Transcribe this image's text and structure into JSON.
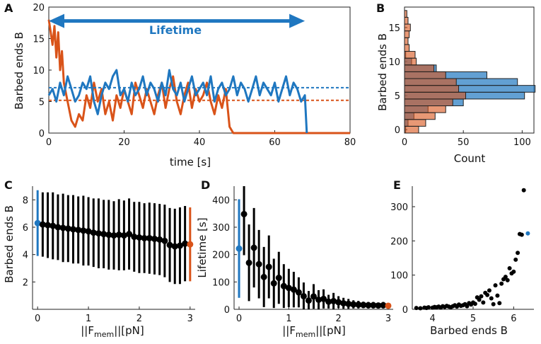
{
  "colors": {
    "blue": "#1f77c0",
    "orange": "#d95319",
    "black": "#000000"
  },
  "chart_data": [
    {
      "panel": "A",
      "type": "line",
      "xlabel": "time [s]",
      "ylabel": "Barbed ends B",
      "xlim": [
        0,
        80
      ],
      "ylim": [
        0,
        20
      ],
      "xticks": [
        0,
        20,
        40,
        60,
        80
      ],
      "yticks": [
        0,
        5,
        10,
        15,
        20
      ],
      "annotation": "Lifetime",
      "annotation_range": [
        0,
        68
      ],
      "series": [
        {
          "name": "blue",
          "color": "#1f77c0",
          "end": 68.5,
          "mean": 7.2,
          "x": [
            0,
            1,
            2,
            3,
            4,
            5,
            6,
            7,
            8,
            9,
            10,
            11,
            12,
            13,
            14,
            15,
            16,
            17,
            18,
            19,
            20,
            21,
            22,
            23,
            24,
            25,
            26,
            27,
            28,
            29,
            30,
            31,
            32,
            33,
            34,
            35,
            36,
            37,
            38,
            39,
            40,
            41,
            42,
            43,
            44,
            45,
            46,
            47,
            48,
            49,
            50,
            51,
            52,
            53,
            54,
            55,
            56,
            57,
            58,
            59,
            60,
            61,
            62,
            63,
            64,
            65,
            66,
            67,
            68,
            68.5
          ],
          "y": [
            6,
            7,
            5,
            8,
            6,
            9,
            7,
            5,
            6,
            8,
            7,
            9,
            5,
            3,
            6,
            8,
            7,
            9,
            10,
            6,
            7,
            5,
            8,
            6,
            7,
            9,
            6,
            8,
            7,
            5,
            8,
            6,
            10,
            7,
            6,
            8,
            5,
            7,
            9,
            6,
            7,
            8,
            6,
            9,
            5,
            7,
            8,
            6,
            7,
            9,
            6,
            8,
            7,
            5,
            7,
            9,
            6,
            8,
            7,
            6,
            8,
            5,
            7,
            9,
            6,
            8,
            7,
            5,
            6,
            0
          ]
        },
        {
          "name": "orange",
          "color": "#d95319",
          "end": 80,
          "mean": 5.2,
          "x": [
            0,
            0.5,
            1,
            1.5,
            2,
            2.5,
            3,
            3.5,
            4,
            5,
            6,
            7,
            8,
            9,
            10,
            11,
            12,
            13,
            14,
            15,
            16,
            17,
            18,
            19,
            20,
            21,
            22,
            23,
            24,
            25,
            26,
            27,
            28,
            29,
            30,
            31,
            32,
            33,
            34,
            35,
            36,
            37,
            38,
            39,
            40,
            41,
            42,
            43,
            44,
            45,
            46,
            47,
            48,
            49,
            60,
            70,
            80
          ],
          "y": [
            18,
            16,
            14,
            17,
            12,
            16,
            10,
            13,
            8,
            5,
            2,
            1,
            3,
            2,
            6,
            4,
            8,
            5,
            7,
            3,
            5,
            2,
            6,
            4,
            7,
            5,
            3,
            8,
            6,
            4,
            7,
            5,
            3,
            6,
            8,
            4,
            7,
            9,
            5,
            3,
            6,
            8,
            4,
            7,
            5,
            6,
            8,
            5,
            3,
            6,
            4,
            7,
            1,
            0,
            0,
            0,
            0
          ]
        }
      ]
    },
    {
      "panel": "B",
      "type": "histogram",
      "orientation": "horizontal",
      "xlabel": "Count",
      "ylabel": "Barbed ends B",
      "xlim": [
        0,
        110
      ],
      "ylim": [
        -0.5,
        18
      ],
      "xticks": [
        0,
        50,
        100
      ],
      "yticks": [
        0,
        5,
        10,
        15
      ],
      "bins": [
        0,
        1,
        2,
        3,
        4,
        5,
        6,
        7,
        8,
        9,
        10,
        11,
        12,
        13,
        14,
        15,
        16,
        17
      ],
      "series": [
        {
          "name": "blue",
          "color": "#1f77c0",
          "counts": [
            1,
            3,
            8,
            20,
            50,
            102,
            111,
            96,
            70,
            27,
            6,
            1,
            0,
            0,
            0,
            0,
            0,
            0
          ]
        },
        {
          "name": "orange",
          "color": "#d95319",
          "counts": [
            12,
            18,
            26,
            35,
            41,
            52,
            46,
            44,
            35,
            25,
            10,
            9,
            4,
            3,
            4,
            5,
            3,
            2
          ]
        }
      ]
    },
    {
      "panel": "C",
      "type": "errorbar",
      "xlabel": "||F_mem||[pN]",
      "ylabel": "Barbed ends B",
      "xlim": [
        -0.1,
        3.1
      ],
      "ylim": [
        0,
        9
      ],
      "xticks": [
        0,
        1,
        2,
        3
      ],
      "yticks": [
        2,
        4,
        6,
        8
      ],
      "x": [
        0,
        0.1,
        0.2,
        0.3,
        0.4,
        0.5,
        0.6,
        0.7,
        0.8,
        0.9,
        1.0,
        1.1,
        1.2,
        1.3,
        1.4,
        1.5,
        1.6,
        1.7,
        1.8,
        1.9,
        2.0,
        2.1,
        2.2,
        2.3,
        2.4,
        2.5,
        2.6,
        2.7,
        2.8,
        2.9,
        3.0
      ],
      "y": [
        6.3,
        6.2,
        6.15,
        6.1,
        6.0,
        5.95,
        5.9,
        5.85,
        5.8,
        5.75,
        5.7,
        5.6,
        5.55,
        5.5,
        5.45,
        5.4,
        5.45,
        5.4,
        5.5,
        5.3,
        5.25,
        5.2,
        5.2,
        5.15,
        5.1,
        5.0,
        4.7,
        4.6,
        4.65,
        4.8,
        4.75
      ],
      "err": [
        2.4,
        2.35,
        2.4,
        2.45,
        2.4,
        2.5,
        2.45,
        2.5,
        2.45,
        2.55,
        2.5,
        2.5,
        2.55,
        2.5,
        2.55,
        2.5,
        2.6,
        2.55,
        2.6,
        2.55,
        2.6,
        2.55,
        2.6,
        2.6,
        2.6,
        2.65,
        2.7,
        2.75,
        2.8,
        2.75,
        2.7
      ],
      "highlight": [
        {
          "index": 0,
          "color": "#1f77c0"
        },
        {
          "index": 30,
          "color": "#d95319"
        }
      ]
    },
    {
      "panel": "D",
      "type": "errorbar",
      "xlabel": "||F_mem||[pN]",
      "ylabel": "Lifetime [s]",
      "xlim": [
        -0.1,
        3.1
      ],
      "ylim": [
        0,
        450
      ],
      "xticks": [
        0,
        1,
        2,
        3
      ],
      "yticks": [
        0,
        100,
        200,
        300,
        400
      ],
      "x": [
        0,
        0.1,
        0.2,
        0.3,
        0.4,
        0.5,
        0.6,
        0.7,
        0.8,
        0.9,
        1.0,
        1.1,
        1.2,
        1.3,
        1.4,
        1.5,
        1.6,
        1.7,
        1.8,
        1.9,
        2.0,
        2.1,
        2.2,
        2.3,
        2.4,
        2.5,
        2.6,
        2.7,
        2.8,
        2.9,
        3.0
      ],
      "y": [
        222,
        348,
        170,
        225,
        165,
        118,
        155,
        95,
        115,
        85,
        78,
        72,
        62,
        48,
        32,
        47,
        35,
        38,
        28,
        30,
        26,
        22,
        20,
        18,
        17,
        16,
        15,
        15,
        14,
        15,
        13
      ],
      "err": [
        180,
        150,
        140,
        145,
        125,
        110,
        115,
        90,
        95,
        80,
        70,
        65,
        55,
        50,
        35,
        45,
        35,
        35,
        25,
        30,
        22,
        20,
        18,
        15,
        14,
        12,
        12,
        12,
        10,
        12,
        8
      ],
      "highlight": [
        {
          "index": 0,
          "color": "#1f77c0"
        },
        {
          "index": 30,
          "color": "#d95319"
        }
      ]
    },
    {
      "panel": "E",
      "type": "scatter",
      "xlabel": "Barbed ends B",
      "ylabel": "",
      "xlim": [
        3.5,
        6.5
      ],
      "ylim": [
        0,
        360
      ],
      "xticks": [
        4,
        5,
        6
      ],
      "yticks": [
        0,
        100,
        200,
        300
      ],
      "x": [
        3.6,
        3.7,
        3.8,
        3.85,
        3.9,
        4.0,
        4.05,
        4.1,
        4.15,
        4.2,
        4.25,
        4.3,
        4.35,
        4.4,
        4.45,
        4.5,
        4.55,
        4.6,
        4.65,
        4.7,
        4.75,
        4.8,
        4.85,
        4.9,
        4.95,
        5.0,
        5.05,
        5.1,
        5.15,
        5.2,
        5.25,
        5.3,
        5.35,
        5.4,
        5.45,
        5.5,
        5.55,
        5.6,
        5.65,
        5.7,
        5.75,
        5.8,
        5.85,
        5.9,
        5.95,
        6.0,
        6.05,
        6.1,
        6.15,
        6.2,
        6.25,
        6.35
      ],
      "y": [
        4,
        3,
        5,
        4,
        6,
        5,
        7,
        6,
        8,
        5,
        9,
        7,
        10,
        8,
        6,
        9,
        12,
        8,
        14,
        10,
        12,
        15,
        9,
        18,
        14,
        20,
        16,
        35,
        28,
        38,
        20,
        48,
        42,
        55,
        32,
        15,
        70,
        40,
        18,
        75,
        88,
        95,
        85,
        120,
        105,
        110,
        145,
        165,
        220,
        218,
        348,
        222
      ],
      "highlight": [
        {
          "index": 51,
          "color": "#1f77c0"
        }
      ]
    }
  ]
}
